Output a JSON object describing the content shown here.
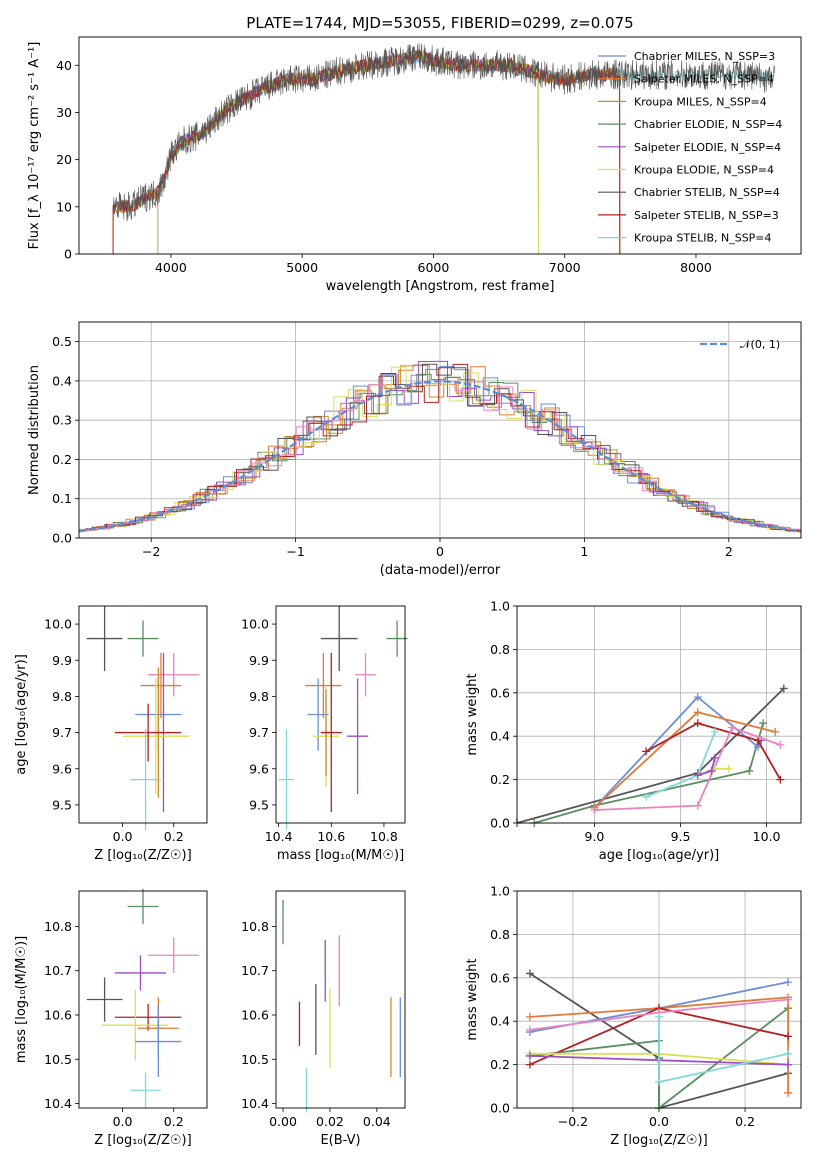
{
  "title": "PLATE=1744, MJD=53055, FIBERID=0299, z=0.075",
  "colors": {
    "Chabrier MILES": "#6a8fd6",
    "Salpeter MILES": "#e07b39",
    "Kroupa MILES": "#c88d2d",
    "Chabrier ELODIE": "#5b8f60",
    "Salpeter ELODIE": "#9b4fc3",
    "Kroupa ELODIE": "#dede55",
    "Chabrier STELIB": "#555555",
    "Salpeter STELIB": "#b22222",
    "Kroupa STELIB": "#80d8dc",
    "pink": "#e882c0",
    "gauss": "#5b8ed6"
  },
  "chart_data": [
    {
      "id": "spectrum",
      "type": "line",
      "xlabel": "wavelength [Angstrom, rest frame]",
      "ylabel": "Flux [f_λ 10⁻¹⁷ erg cm⁻² s⁻¹ A⁻¹]",
      "xlim": [
        3300,
        8800
      ],
      "ylim": [
        0,
        46
      ],
      "xticks": [
        "4000",
        "5000",
        "6000",
        "7000",
        "8000"
      ],
      "yticks": [
        "0",
        "10",
        "20",
        "30",
        "40"
      ],
      "legend_location": "top-right",
      "legend": [
        "Chabrier MILES, N_SSP=3",
        "Salpeter MILES, N_SSP=4",
        "Kroupa MILES, N_SSP=4",
        "Chabrier ELODIE, N_SSP=4",
        "Salpeter ELODIE, N_SSP=4",
        "Kroupa ELODIE, N_SSP=4",
        "Chabrier STELIB, N_SSP=4",
        "Salpeter STELIB, N_SSP=3",
        "Kroupa STELIB, N_SSP=4"
      ],
      "continuum": {
        "x": [
          3560,
          3700,
          3800,
          3900,
          3950,
          4000,
          4100,
          4200,
          4300,
          4400,
          4500,
          4700,
          4900,
          5100,
          5300,
          5500,
          5700,
          5900,
          6000,
          6200,
          6400,
          6600,
          6800,
          7000,
          7200,
          7400,
          7600,
          7800,
          8000,
          8200,
          8400,
          8600
        ],
        "y": [
          10,
          10,
          12,
          13,
          16,
          21,
          24,
          25,
          27,
          30,
          32,
          35,
          37,
          37,
          39,
          40,
          41,
          42,
          41,
          40,
          40,
          40,
          38,
          37,
          38,
          38,
          38,
          38,
          38,
          38,
          38,
          37
        ]
      },
      "grid": false
    },
    {
      "id": "residuals",
      "type": "histogram",
      "xlabel": "(data-model)/error",
      "ylabel": "Normed distribution",
      "xlim": [
        -2.5,
        2.5
      ],
      "ylim": [
        0,
        0.55
      ],
      "xticks": [
        "−2",
        "−1",
        "0",
        "1",
        "2"
      ],
      "yticks": [
        "0.0",
        "0.1",
        "0.2",
        "0.3",
        "0.4",
        "0.5"
      ],
      "legend": [
        "𝒩(0, 1)"
      ],
      "legend_location": "top-right",
      "grid": true
    },
    {
      "id": "age-vs-Z",
      "type": "scatter",
      "xlabel": "Z [log₁₀(Z/Z☉)]",
      "ylabel": "age  [log₁₀(age/yr)]",
      "xlim": [
        -0.17,
        0.33
      ],
      "ylim": [
        9.45,
        10.05
      ],
      "xticks": [
        "0.0",
        "0.2"
      ],
      "yticks": [
        "9.5",
        "9.6",
        "9.7",
        "9.8",
        "9.9",
        "10.0"
      ],
      "points": [
        {
          "c": "Chabrier STELIB",
          "x": -0.07,
          "y": 9.96,
          "ex": 0.07,
          "ey": 0.09
        },
        {
          "c": "Chabrier ELODIE",
          "x": 0.08,
          "y": 9.96,
          "ex": 0.06,
          "ey": 0.05
        },
        {
          "c": "pink",
          "x": 0.2,
          "y": 9.86,
          "ex": 0.1,
          "ey": 0.06
        },
        {
          "c": "Salpeter MILES",
          "x": 0.15,
          "y": 9.83,
          "ex": 0.08,
          "ey": 0.09
        },
        {
          "c": "Chabrier MILES",
          "x": 0.14,
          "y": 9.75,
          "ex": 0.09,
          "ey": 0.1
        },
        {
          "c": "Salpeter ELODIE",
          "x": 0.16,
          "y": 9.7,
          "ex": 0.03,
          "ey": 0.22
        },
        {
          "c": "Kroupa ELODIE",
          "x": 0.13,
          "y": 9.69,
          "ex": 0.13,
          "ey": 0.16
        },
        {
          "c": "Kroupa MILES",
          "x": 0.14,
          "y": 9.7,
          "ex": 0.02,
          "ey": 0.18
        },
        {
          "c": "Salpeter STELIB",
          "x": 0.1,
          "y": 9.7,
          "ex": 0.13,
          "ey": 0.08
        },
        {
          "c": "Kroupa STELIB",
          "x": 0.09,
          "y": 9.57,
          "ex": 0.06,
          "ey": 0.14
        }
      ]
    },
    {
      "id": "age-vs-mass",
      "type": "scatter",
      "xlabel": "mass [log₁₀(M/M☉)]",
      "ylabel": "",
      "xlim": [
        10.39,
        10.88
      ],
      "ylim": [
        9.45,
        10.05
      ],
      "xticks": [
        "10.4",
        "10.6",
        "10.8"
      ],
      "yticks": [
        "9.5",
        "9.6",
        "9.7",
        "9.8",
        "9.9",
        "10.0"
      ],
      "points": [
        {
          "c": "Chabrier STELIB",
          "x": 10.63,
          "y": 9.96,
          "ex": 0.07,
          "ey": 0.09
        },
        {
          "c": "Chabrier ELODIE",
          "x": 10.85,
          "y": 9.96,
          "ex": 0.04,
          "ey": 0.05
        },
        {
          "c": "pink",
          "x": 10.73,
          "y": 9.86,
          "ex": 0.04,
          "ey": 0.06
        },
        {
          "c": "Salpeter MILES",
          "x": 10.57,
          "y": 9.83,
          "ex": 0.07,
          "ey": 0.09
        },
        {
          "c": "Chabrier MILES",
          "x": 10.55,
          "y": 9.75,
          "ex": 0.04,
          "ey": 0.1
        },
        {
          "c": "Salpeter ELODIE",
          "x": 10.7,
          "y": 9.69,
          "ex": 0.04,
          "ey": 0.16
        },
        {
          "c": "Kroupa ELODIE",
          "x": 10.58,
          "y": 9.69,
          "ex": 0.05,
          "ey": 0.14
        },
        {
          "c": "Kroupa MILES",
          "x": 10.58,
          "y": 9.7,
          "ex": 0.02,
          "ey": 0.12
        },
        {
          "c": "Salpeter STELIB",
          "x": 10.6,
          "y": 9.7,
          "ex": 0.04,
          "ey": 0.22
        },
        {
          "c": "Kroupa STELIB",
          "x": 10.43,
          "y": 9.57,
          "ex": 0.03,
          "ey": 0.14
        }
      ]
    },
    {
      "id": "weight-vs-age",
      "type": "line",
      "xlabel": "age  [log₁₀(age/yr)]",
      "ylabel": "mass weight",
      "xlim": [
        8.55,
        10.2
      ],
      "ylim": [
        0,
        1
      ],
      "xticks": [
        "9.0",
        "9.5",
        "10.0"
      ],
      "yticks": [
        "0.0",
        "0.2",
        "0.4",
        "0.6",
        "0.8",
        "1.0"
      ],
      "grid": true,
      "series": [
        {
          "c": "Chabrier STELIB",
          "x": [
            8.55,
            9.6,
            10.1
          ],
          "y": [
            0.0,
            0.23,
            0.62
          ]
        },
        {
          "c": "Chabrier ELODIE",
          "x": [
            8.65,
            9.0,
            9.9,
            9.98
          ],
          "y": [
            0.0,
            0.08,
            0.24,
            0.46
          ]
        },
        {
          "c": "Chabrier MILES",
          "x": [
            9.0,
            9.6,
            9.95,
            9.97
          ],
          "y": [
            0.07,
            0.58,
            0.35,
            0.38
          ]
        },
        {
          "c": "Salpeter MILES",
          "x": [
            9.0,
            9.6,
            10.05
          ],
          "y": [
            0.07,
            0.51,
            0.42
          ]
        },
        {
          "c": "Salpeter STELIB",
          "x": [
            9.3,
            9.6,
            9.95,
            10.08
          ],
          "y": [
            0.33,
            0.46,
            0.38,
            0.2
          ]
        },
        {
          "c": "pink",
          "x": [
            9.0,
            9.6,
            9.8,
            10.08
          ],
          "y": [
            0.06,
            0.08,
            0.44,
            0.36
          ]
        },
        {
          "c": "Kroupa STELIB",
          "x": [
            9.3,
            9.6,
            9.7
          ],
          "y": [
            0.12,
            0.22,
            0.42
          ]
        },
        {
          "c": "Kroupa ELODIE",
          "x": [
            9.6,
            9.7,
            9.78
          ],
          "y": [
            0.22,
            0.25,
            0.25
          ]
        },
        {
          "c": "Salpeter ELODIE",
          "x": [
            9.6,
            9.68,
            9.7
          ],
          "y": [
            0.22,
            0.24,
            0.3
          ]
        }
      ]
    },
    {
      "id": "mass-vs-Z",
      "type": "scatter",
      "xlabel": "Z [log₁₀(Z/Z☉)]",
      "ylabel": "mass [log₁₀(M/M☉)]",
      "xlim": [
        -0.17,
        0.33
      ],
      "ylim": [
        10.39,
        10.88
      ],
      "xticks": [
        "0.0",
        "0.2"
      ],
      "yticks": [
        "10.4",
        "10.5",
        "10.6",
        "10.7",
        "10.8"
      ],
      "points": [
        {
          "c": "Chabrier ELODIE",
          "x": 0.08,
          "y": 10.845,
          "ex": 0.06,
          "ey": 0.04
        },
        {
          "c": "pink",
          "x": 0.2,
          "y": 10.735,
          "ex": 0.1,
          "ey": 0.04
        },
        {
          "c": "Salpeter ELODIE",
          "x": 0.07,
          "y": 10.695,
          "ex": 0.1,
          "ey": 0.04
        },
        {
          "c": "Chabrier STELIB",
          "x": -0.07,
          "y": 10.635,
          "ex": 0.07,
          "ey": 0.05
        },
        {
          "c": "Salpeter STELIB",
          "x": 0.1,
          "y": 10.595,
          "ex": 0.13,
          "ey": 0.03
        },
        {
          "c": "Kroupa ELODIE",
          "x": 0.05,
          "y": 10.577,
          "ex": 0.13,
          "ey": 0.08
        },
        {
          "c": "Salpeter MILES",
          "x": 0.14,
          "y": 10.57,
          "ex": 0.08,
          "ey": 0.07
        },
        {
          "c": "Kroupa MILES",
          "x": 0.14,
          "y": 10.57,
          "ex": 0.02,
          "ey": 0.05
        },
        {
          "c": "Chabrier MILES",
          "x": 0.14,
          "y": 10.54,
          "ex": 0.09,
          "ey": 0.08
        },
        {
          "c": "Kroupa STELIB",
          "x": 0.09,
          "y": 10.43,
          "ex": 0.06,
          "ey": 0.04
        }
      ]
    },
    {
      "id": "mass-vs-ebv",
      "type": "scatter",
      "xlabel": "E(B-V)",
      "ylabel": "",
      "xlim": [
        -0.003,
        0.052
      ],
      "ylim": [
        10.39,
        10.88
      ],
      "xticks": [
        "0.00",
        "0.02",
        "0.04"
      ],
      "yticks": [
        "10.4",
        "10.5",
        "10.6",
        "10.7",
        "10.8"
      ],
      "points": [
        {
          "c": "Chabrier ELODIE",
          "x": 0.0,
          "y": 10.81,
          "ex": 0,
          "ey": 0.05
        },
        {
          "c": "Kroupa STELIB",
          "x": 0.01,
          "y": 10.43,
          "ex": 0,
          "ey": 0.05
        },
        {
          "c": "Salpeter STELIB",
          "x": 0.007,
          "y": 10.58,
          "ex": 0,
          "ey": 0.05
        },
        {
          "c": "Chabrier STELIB",
          "x": 0.014,
          "y": 10.59,
          "ex": 0,
          "ey": 0.08
        },
        {
          "c": "Salpeter ELODIE",
          "x": 0.018,
          "y": 10.7,
          "ex": 0,
          "ey": 0.07
        },
        {
          "c": "Kroupa ELODIE",
          "x": 0.02,
          "y": 10.57,
          "ex": 0,
          "ey": 0.09
        },
        {
          "c": "pink",
          "x": 0.024,
          "y": 10.7,
          "ex": 0,
          "ey": 0.08
        },
        {
          "c": "Kroupa MILES",
          "x": 0.046,
          "y": 10.55,
          "ex": 0,
          "ey": 0.09
        },
        {
          "c": "Chabrier MILES",
          "x": 0.05,
          "y": 10.55,
          "ex": 0,
          "ey": 0.09
        }
      ]
    },
    {
      "id": "weight-vs-Z",
      "type": "line",
      "xlabel": "Z [log₁₀(Z/Z☉)]",
      "ylabel": "mass weight",
      "xlim": [
        -0.33,
        0.33
      ],
      "ylim": [
        0,
        1
      ],
      "xticks": [
        "−0.2",
        "0.0",
        "0.2"
      ],
      "yticks": [
        "0.0",
        "0.2",
        "0.4",
        "0.6",
        "0.8",
        "1.0"
      ],
      "grid": true,
      "series": [
        {
          "c": "Chabrier STELIB",
          "x": [
            -0.3,
            0.0,
            0.0,
            0.3
          ],
          "y": [
            0.62,
            0.23,
            0.0,
            0.16
          ]
        },
        {
          "c": "Chabrier ELODIE",
          "x": [
            -0.3,
            0.0,
            0.0,
            0.3
          ],
          "y": [
            0.24,
            0.31,
            0.0,
            0.46
          ]
        },
        {
          "c": "Chabrier MILES",
          "x": [
            -0.3,
            0.0,
            0.3
          ],
          "y": [
            0.35,
            0.46,
            0.58
          ]
        },
        {
          "c": "Salpeter MILES",
          "x": [
            -0.3,
            0.0,
            0.3,
            0.3
          ],
          "y": [
            0.42,
            0.46,
            0.51,
            0.07
          ]
        },
        {
          "c": "Salpeter STELIB",
          "x": [
            -0.3,
            0.0,
            0.3
          ],
          "y": [
            0.2,
            0.46,
            0.33
          ]
        },
        {
          "c": "pink",
          "x": [
            -0.3,
            0.0,
            0.3
          ],
          "y": [
            0.36,
            0.44,
            0.5
          ]
        },
        {
          "c": "Kroupa ELODIE",
          "x": [
            -0.3,
            0.0,
            0.3
          ],
          "y": [
            0.25,
            0.25,
            0.2
          ]
        },
        {
          "c": "Salpeter ELODIE",
          "x": [
            -0.3,
            0.3
          ],
          "y": [
            0.24,
            0.2
          ]
        },
        {
          "c": "Kroupa STELIB",
          "x": [
            0.0,
            0.0,
            0.3
          ],
          "y": [
            0.42,
            0.12,
            0.25
          ]
        }
      ]
    }
  ]
}
